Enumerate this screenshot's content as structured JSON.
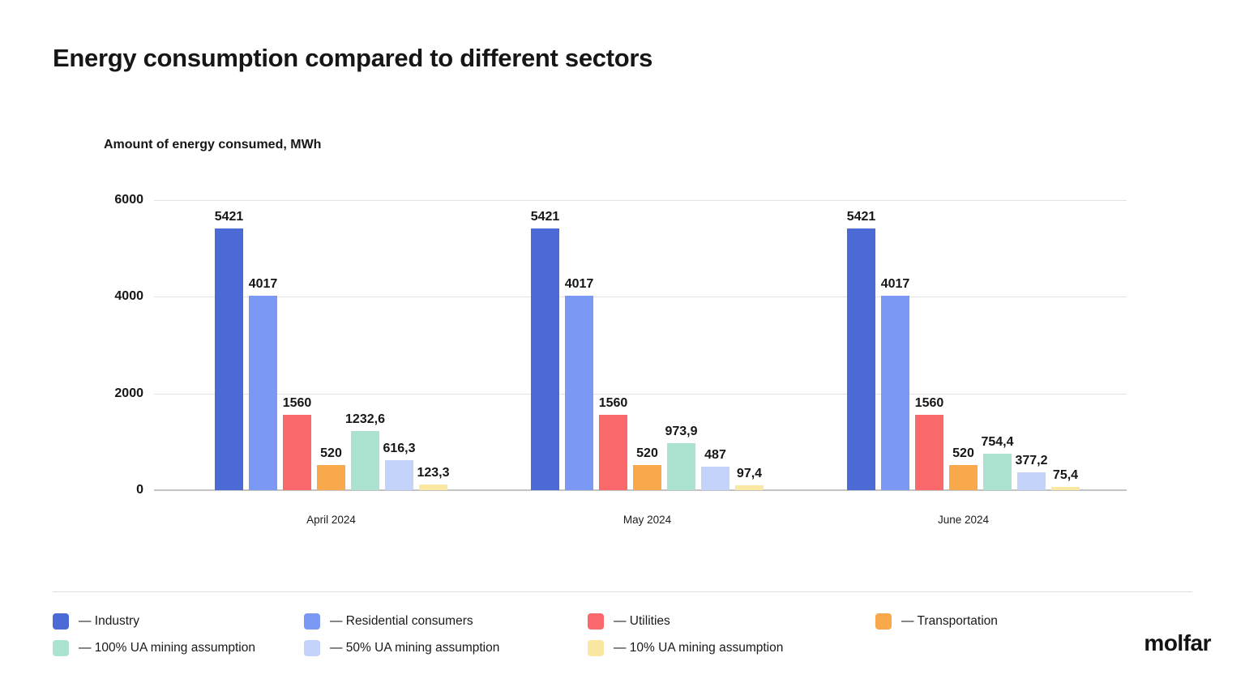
{
  "page": {
    "title": "Energy consumption compared to different sectors",
    "axis_title": "Amount of energy consumed, MWh",
    "logo_text": "molfar"
  },
  "chart_data": {
    "type": "bar",
    "title": "Energy consumption compared to different sectors",
    "ylabel": "Amount of energy consumed, MWh",
    "xlabel": "",
    "categories": [
      "April 2024",
      "May 2024",
      "June 2024"
    ],
    "ylim": [
      0,
      6000
    ],
    "y_ticks": [
      6000,
      4000,
      2000,
      0
    ],
    "y_tick_labels": [
      "6000",
      "4000",
      "2000",
      "0"
    ],
    "grid": "horizontal gridlines on",
    "legend_position": "bottom",
    "decimal_separator": ",",
    "legend_dash": "—",
    "series": [
      {
        "name": "Industry",
        "color": "#4B6AD6",
        "values": [
          5421,
          5421,
          5421
        ],
        "value_labels": [
          "5421",
          "5421",
          "5421"
        ]
      },
      {
        "name": "Residential consumers",
        "color": "#7B98F4",
        "values": [
          4017,
          4017,
          4017
        ],
        "value_labels": [
          "4017",
          "4017",
          "4017"
        ]
      },
      {
        "name": "Utilities",
        "color": "#F9686A",
        "values": [
          1560,
          1560,
          1560
        ],
        "value_labels": [
          "1560",
          "1560",
          "1560"
        ]
      },
      {
        "name": "Transportation",
        "color": "#FAA84C",
        "values": [
          520,
          520,
          520
        ],
        "value_labels": [
          "520",
          "520",
          "520"
        ]
      },
      {
        "name": "100% UA mining assumption",
        "color": "#ABE3D0",
        "values": [
          1232.6,
          973.9,
          754.4
        ],
        "value_labels": [
          "1232,6",
          "973,9",
          "754,4"
        ]
      },
      {
        "name": "50% UA mining assumption",
        "color": "#C3D3F9",
        "values": [
          616.3,
          487,
          377.2
        ],
        "value_labels": [
          "616,3",
          "487",
          "377,2"
        ]
      },
      {
        "name": "10% UA mining assumption",
        "color": "#FAE8A2",
        "values": [
          123.3,
          97.4,
          75.4
        ],
        "value_labels": [
          "123,3",
          "97,4",
          "75,4"
        ]
      }
    ]
  }
}
